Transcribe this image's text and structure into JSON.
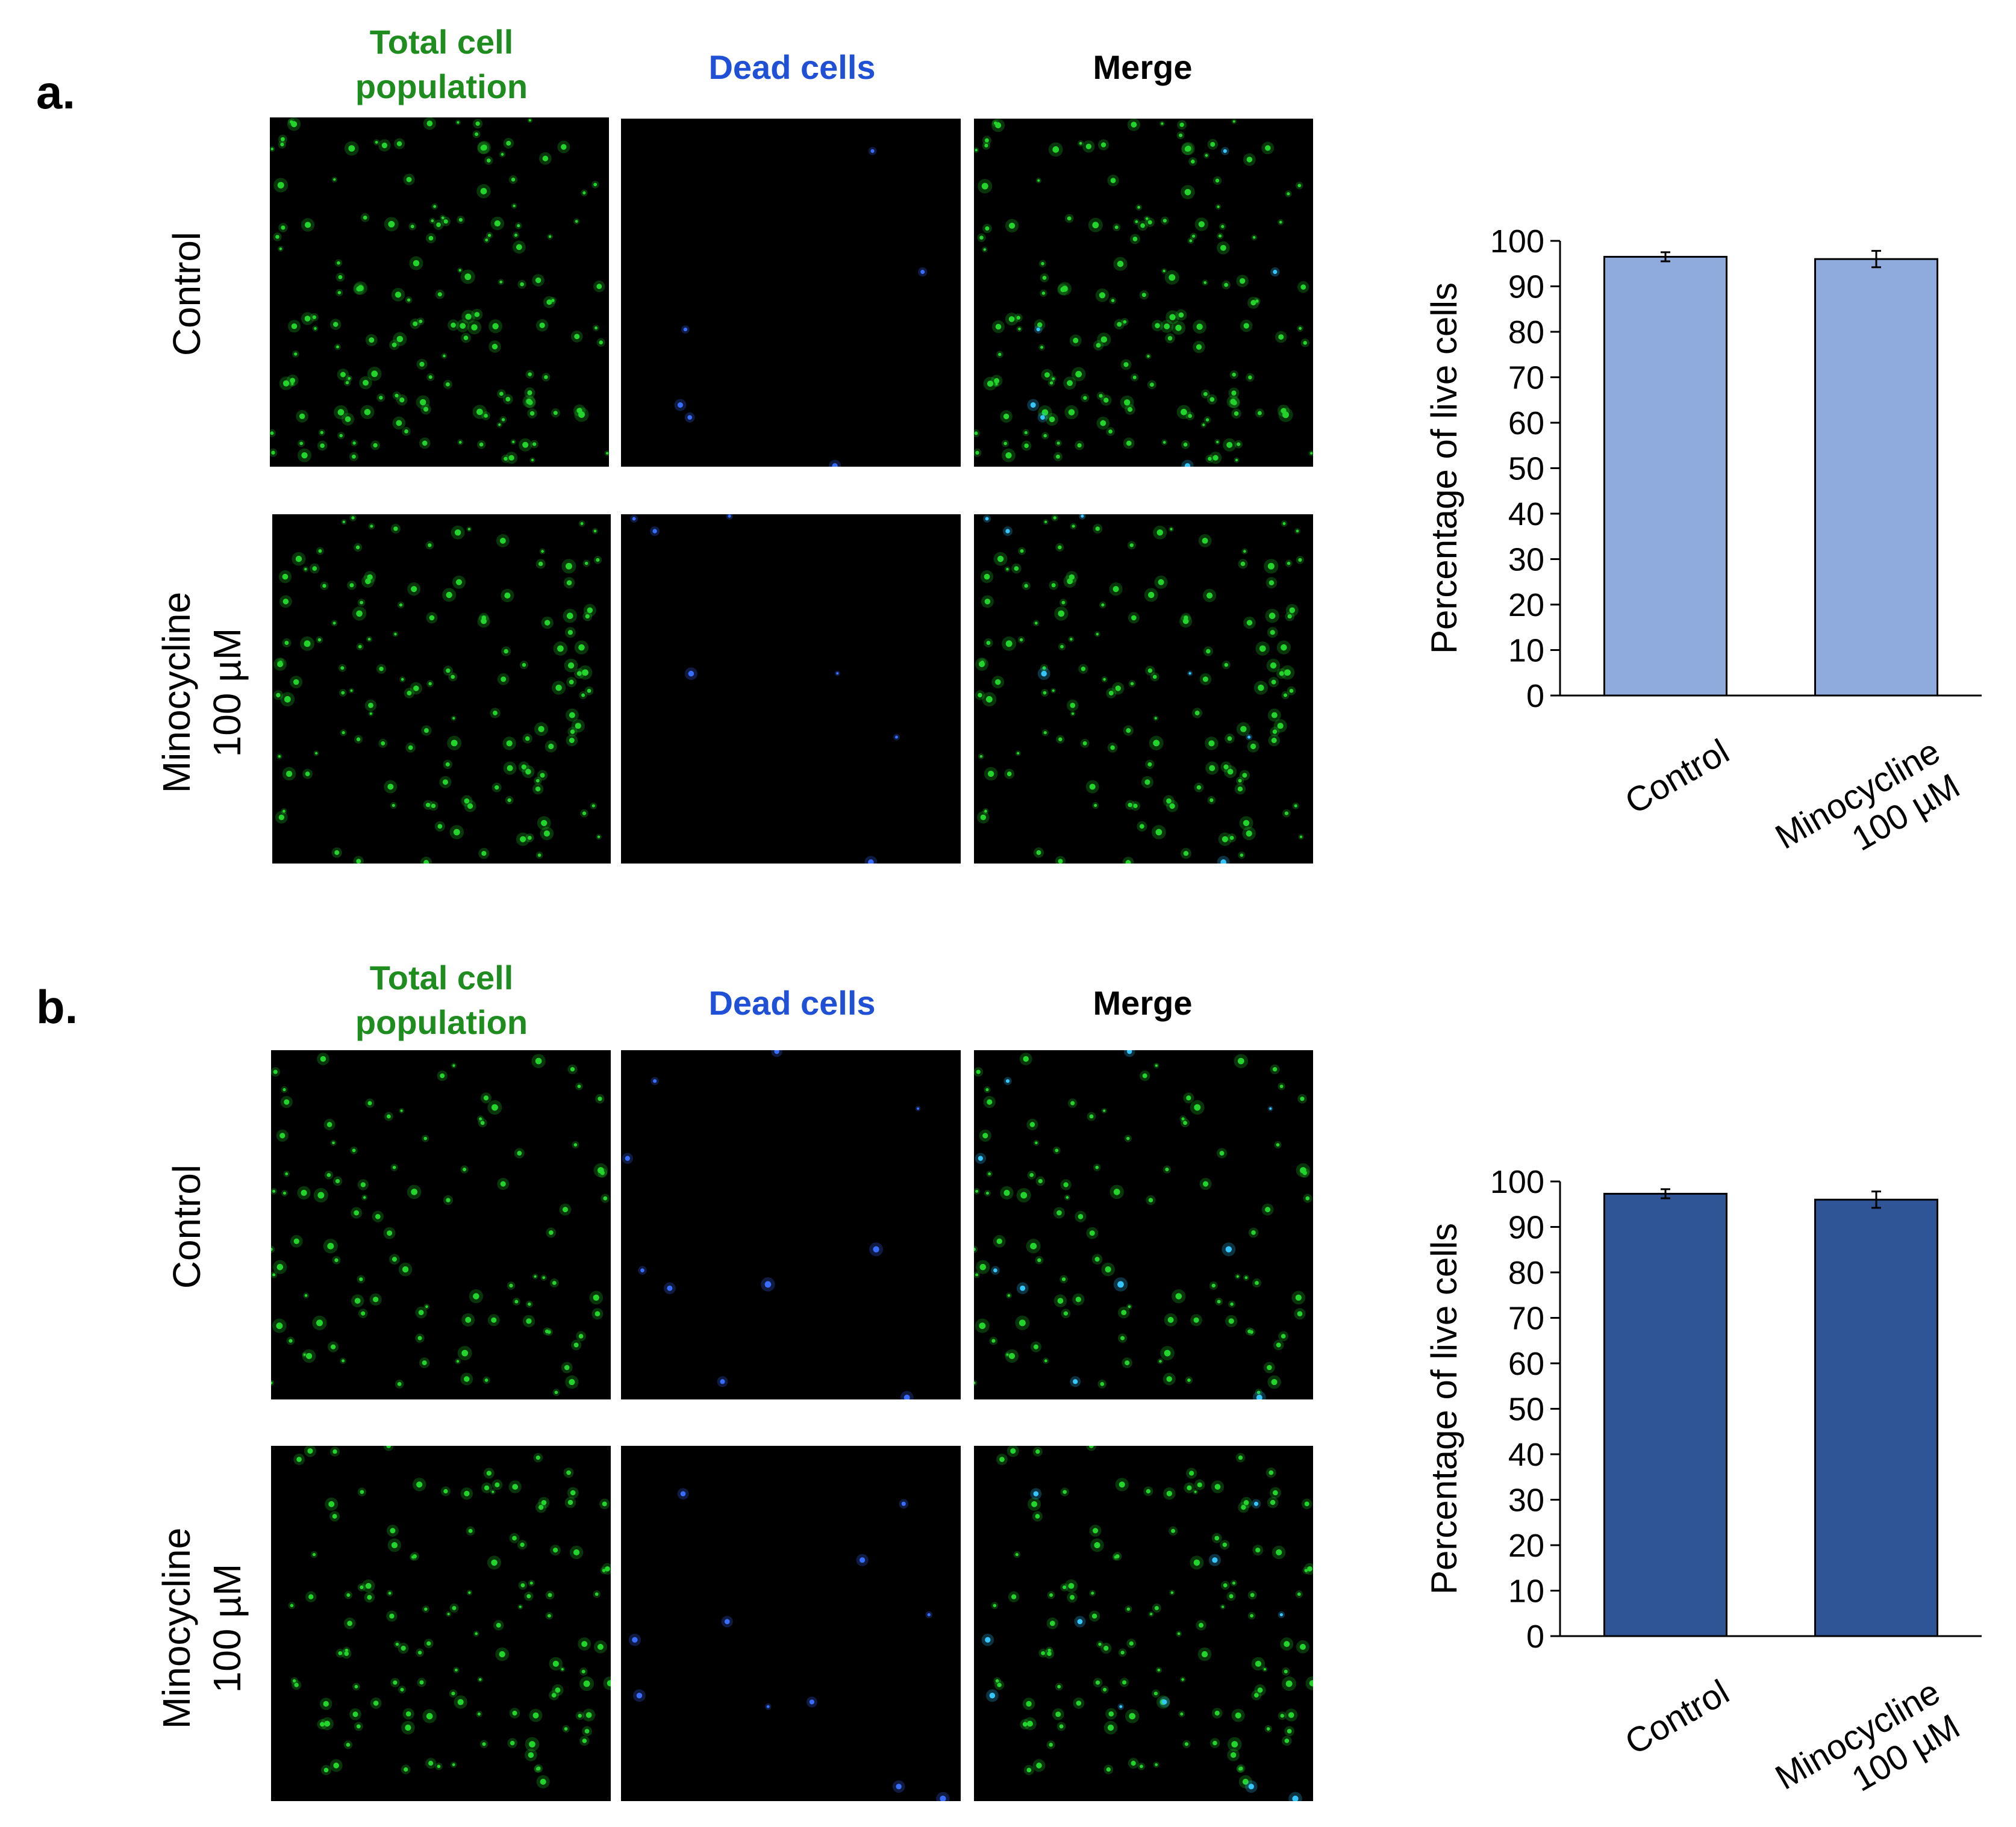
{
  "colors": {
    "total_cells": "#1e8c1e",
    "dead_cells": "#1f50d6",
    "merge": "#000000",
    "bar_panel_a": "#8faadc",
    "bar_panel_b": "#2f5597"
  },
  "panels": [
    {
      "letter": "a.",
      "columns": {
        "total": [
          "Total cell",
          "population"
        ],
        "dead": "Dead cells",
        "merge": "Merge"
      },
      "rows": [
        {
          "label": [
            "Control"
          ]
        },
        {
          "label": [
            "Minocycline",
            "100 µM"
          ]
        }
      ]
    },
    {
      "letter": "b.",
      "columns": {
        "total": [
          "Total cell",
          "population"
        ],
        "dead": "Dead cells",
        "merge": "Merge"
      },
      "rows": [
        {
          "label": [
            "Control"
          ]
        },
        {
          "label": [
            "Minocycline",
            "100 µM"
          ]
        }
      ]
    }
  ],
  "chart_data": [
    {
      "type": "bar",
      "categories": [
        [
          "Control"
        ],
        [
          "Minocycline",
          "100 µM"
        ]
      ],
      "values": [
        96.5,
        96.0
      ],
      "error": [
        1.0,
        1.8
      ],
      "color": "#8faadc",
      "ylabel": "Percentage of live cells",
      "ylim": [
        0,
        100
      ],
      "yticks": [
        0,
        10,
        20,
        30,
        40,
        50,
        60,
        70,
        80,
        90,
        100
      ],
      "grid": false
    },
    {
      "type": "bar",
      "categories": [
        [
          "Control"
        ],
        [
          "Minocycline",
          "100 µM"
        ]
      ],
      "values": [
        97.3,
        96.0
      ],
      "error": [
        1.0,
        1.8
      ],
      "color": "#2f5597",
      "ylabel": "Percentage of live cells",
      "ylim": [
        0,
        100
      ],
      "yticks": [
        0,
        10,
        20,
        30,
        40,
        50,
        60,
        70,
        80,
        90,
        100
      ],
      "grid": false
    }
  ]
}
